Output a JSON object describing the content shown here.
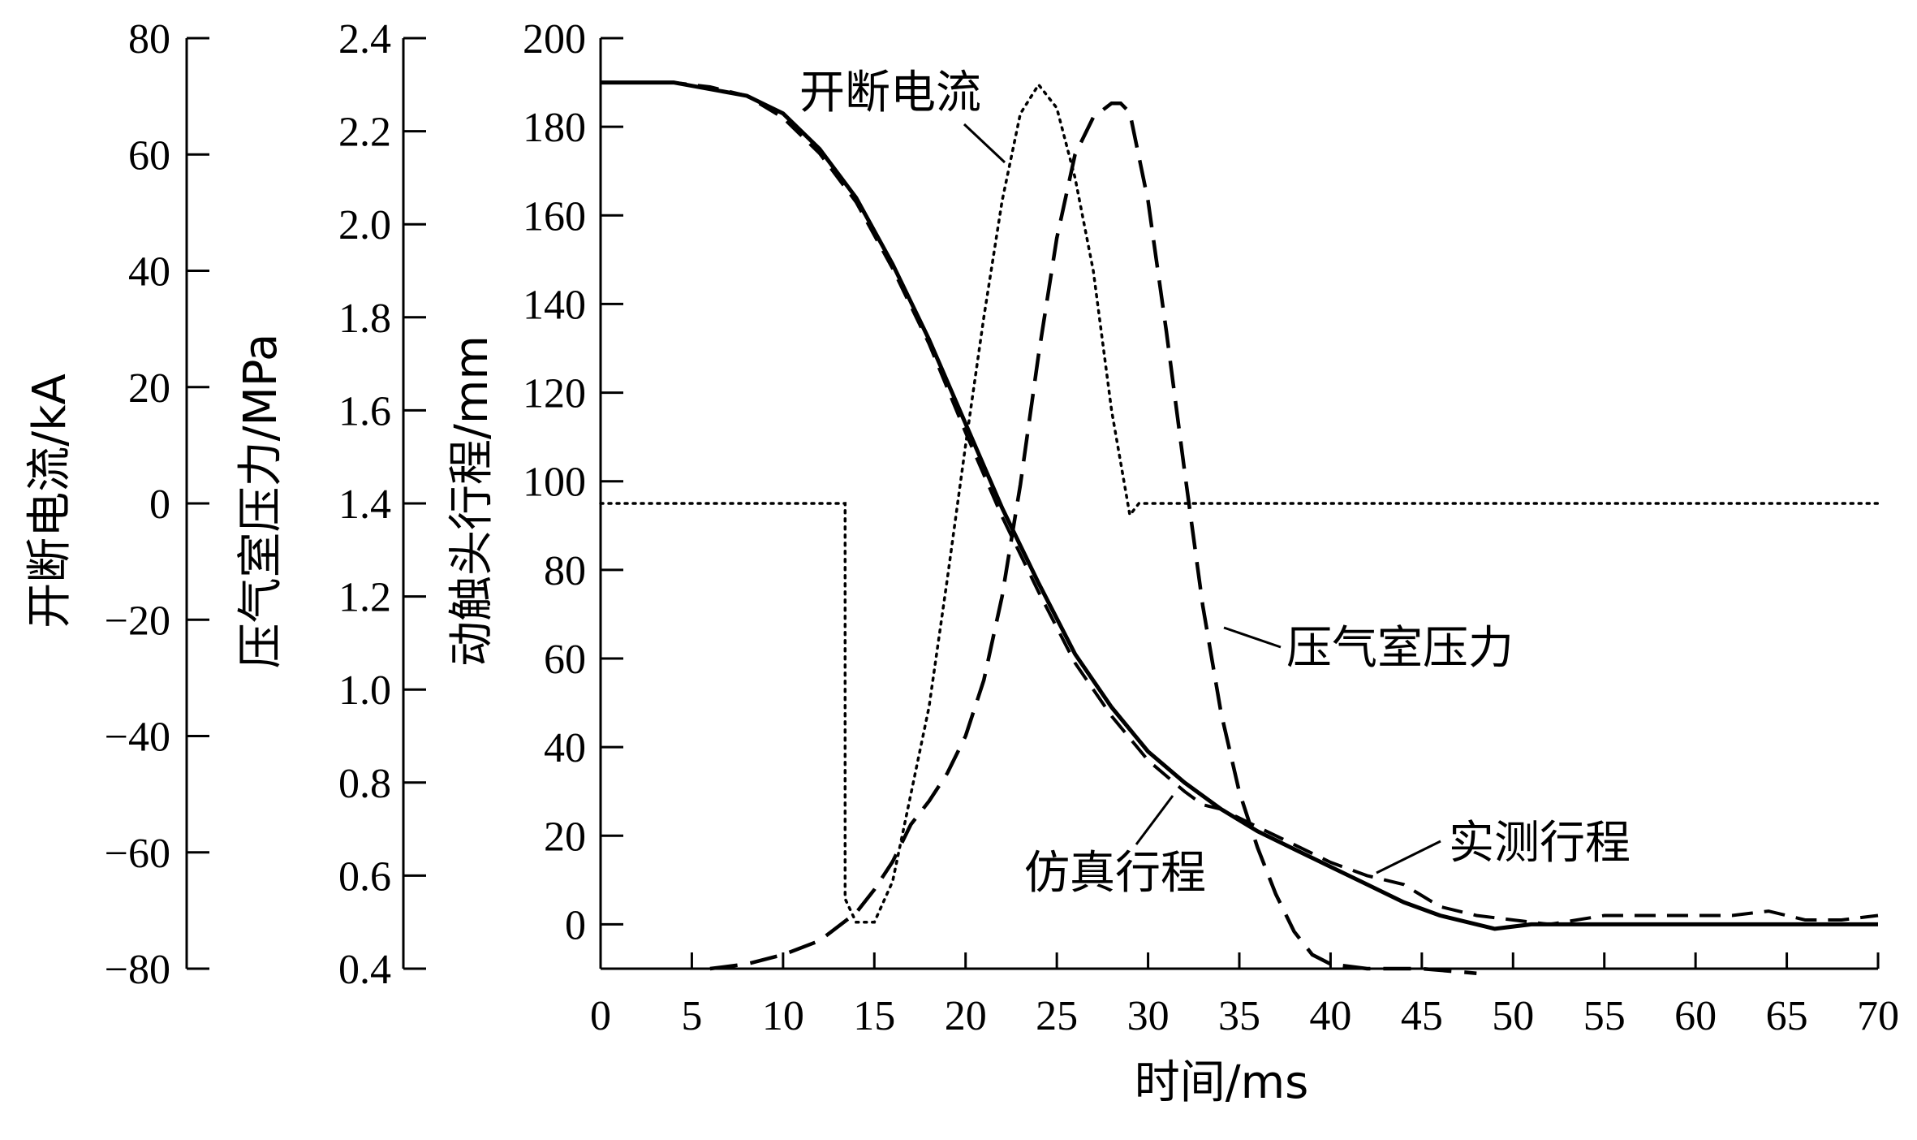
{
  "chart_data": {
    "type": "line",
    "xlabel": "时间/ms",
    "xlim": [
      0,
      70
    ],
    "xticks": [
      0,
      5,
      10,
      15,
      20,
      25,
      30,
      35,
      40,
      45,
      50,
      55,
      60,
      65,
      70
    ],
    "axes": {
      "current": {
        "label": "开断电流/kA",
        "lim": [
          -80,
          80
        ],
        "ticks": [
          80,
          60,
          40,
          20,
          0,
          -20,
          -40,
          -60,
          -80
        ],
        "tick_labels": [
          "80",
          "60",
          "40",
          "20",
          "0",
          "−20",
          "−40",
          "−60",
          "−80"
        ]
      },
      "pressure": {
        "label": "压气室压力/MPa",
        "lim": [
          0.4,
          2.4
        ],
        "ticks": [
          2.4,
          2.2,
          2.0,
          1.8,
          1.6,
          1.4,
          1.2,
          1.0,
          0.8,
          0.6,
          0.4
        ],
        "tick_labels": [
          "2.4",
          "2.2",
          "2.0",
          "1.8",
          "1.6",
          "1.4",
          "1.2",
          "1.0",
          "0.8",
          "0.6",
          "0.4"
        ]
      },
      "travel": {
        "label": "动触头行程/mm",
        "lim": [
          -10,
          200
        ],
        "ticks": [
          200,
          180,
          160,
          140,
          120,
          100,
          80,
          60,
          40,
          20,
          0
        ],
        "tick_labels": [
          "200",
          "180",
          "160",
          "140",
          "120",
          "100",
          "80",
          "60",
          "40",
          "20",
          "0"
        ]
      }
    },
    "series": [
      {
        "name": "实测行程",
        "axis": "travel",
        "style": "solid",
        "x": [
          0,
          4,
          8,
          10,
          12,
          14,
          16,
          18,
          20,
          22,
          24,
          26,
          28,
          30,
          32,
          34,
          36,
          38,
          40,
          42,
          44,
          46,
          48,
          49,
          51,
          54,
          58,
          62,
          66,
          70
        ],
        "y": [
          190,
          190,
          187,
          183,
          175,
          164,
          149,
          132,
          113,
          94,
          77,
          61,
          49,
          39,
          32,
          26,
          21,
          17,
          13,
          9,
          5,
          2,
          0,
          -1,
          0,
          0,
          0,
          0,
          0,
          0
        ]
      },
      {
        "name": "仿真行程",
        "axis": "travel",
        "style": "dashed",
        "x": [
          0,
          4,
          6,
          8,
          10,
          12,
          14,
          16,
          18,
          20,
          22,
          24,
          26,
          28,
          30,
          32,
          33,
          34,
          36,
          38,
          40,
          42,
          44,
          46,
          48,
          50,
          52,
          55,
          58,
          62,
          64,
          66,
          68,
          70
        ],
        "y": [
          190,
          190,
          189,
          187,
          182,
          174,
          163,
          148,
          131,
          111,
          92,
          75,
          59,
          47,
          37,
          30,
          27,
          26,
          22,
          18,
          14,
          11,
          9,
          4,
          2,
          1,
          0,
          2,
          2,
          2,
          3,
          1,
          1,
          2
        ]
      },
      {
        "name": "压气室压力",
        "axis": "pressure",
        "style": "dashed",
        "x": [
          6,
          8,
          10,
          12,
          14,
          15,
          16,
          17,
          18,
          19,
          20,
          21,
          22,
          23,
          24,
          25,
          26,
          27,
          28,
          28.5,
          29,
          30,
          31,
          32,
          33,
          34,
          35,
          36,
          37,
          38,
          39,
          40,
          42,
          45,
          48
        ],
        "y": [
          0.4,
          0.41,
          0.43,
          0.46,
          0.52,
          0.57,
          0.63,
          0.71,
          0.76,
          0.82,
          0.9,
          1.02,
          1.2,
          1.44,
          1.72,
          1.97,
          2.15,
          2.23,
          2.26,
          2.26,
          2.24,
          2.05,
          1.77,
          1.47,
          1.18,
          0.95,
          0.78,
          0.66,
          0.56,
          0.48,
          0.43,
          0.41,
          0.4,
          0.4,
          0.39
        ]
      },
      {
        "name": "开断电流",
        "axis": "current",
        "style": "dotted",
        "x": [
          0,
          13.4,
          13.4,
          14,
          15,
          16,
          17,
          18,
          19,
          20,
          21,
          22,
          23,
          24,
          25,
          26,
          27,
          28,
          29,
          29.5,
          29.5,
          70
        ],
        "y": [
          0,
          0,
          -68,
          -72,
          -72,
          -65,
          -50,
          -35,
          -13,
          10,
          32,
          52,
          67,
          72,
          68,
          56,
          40,
          16,
          -2,
          0,
          0,
          0
        ]
      }
    ],
    "annotations": [
      "开断电流",
      "压气室压力",
      "实测行程",
      "仿真行程"
    ]
  }
}
